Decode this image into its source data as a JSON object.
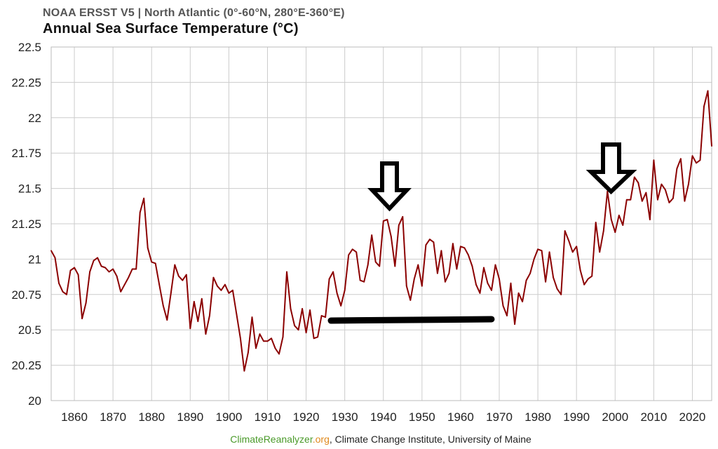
{
  "header": {
    "subtitle": "NOAA ERSST V5 | North Atlantic (0°-60°N, 280°E-360°E)",
    "title": "Annual Sea Surface Temperature (°C)"
  },
  "footer": {
    "site_name": "ClimateReanalyzer",
    "site_tld": ".org",
    "rest": ", Climate Change Institute, University of Maine"
  },
  "colors": {
    "line": "#8b0000",
    "grid": "#cccccc",
    "annotation": "#000000"
  },
  "chart_data": {
    "type": "line",
    "title": "Annual Sea Surface Temperature (°C)",
    "subtitle": "NOAA ERSST V5 | North Atlantic (0°-60°N, 280°E-360°E)",
    "xlabel": "",
    "ylabel": "",
    "xlim": [
      1854,
      2025
    ],
    "ylim": [
      20,
      22.5
    ],
    "x_ticks": [
      1860,
      1870,
      1880,
      1890,
      1900,
      1910,
      1920,
      1930,
      1940,
      1950,
      1960,
      1970,
      1980,
      1990,
      2000,
      2010,
      2020
    ],
    "y_ticks": [
      {
        "value": 20,
        "label": "20"
      },
      {
        "value": 20.25,
        "label": "20.25"
      },
      {
        "value": 20.5,
        "label": "20.5"
      },
      {
        "value": 20.75,
        "label": "20.75"
      },
      {
        "value": 21,
        "label": "21"
      },
      {
        "value": 21.25,
        "label": "21.25"
      },
      {
        "value": 21.5,
        "label": "21.5"
      },
      {
        "value": 21.75,
        "label": "21.75"
      },
      {
        "value": 22,
        "label": "22"
      },
      {
        "value": 22.25,
        "label": "22.25"
      },
      {
        "value": 22.5,
        "label": "22.5"
      }
    ],
    "grid": true,
    "legend": "none",
    "x_start": 1854,
    "series": [
      {
        "values": [
          21.06,
          21.01,
          20.83,
          20.77,
          20.75,
          20.92,
          20.94,
          20.89,
          20.58,
          20.69,
          20.91,
          20.99,
          21.01,
          20.95,
          20.94,
          20.91,
          20.93,
          20.88,
          20.77,
          20.82,
          20.87,
          20.93,
          20.93,
          21.33,
          21.43,
          21.08,
          20.98,
          20.97,
          20.82,
          20.67,
          20.57,
          20.76,
          20.96,
          20.88,
          20.85,
          20.89,
          20.51,
          20.7,
          20.56,
          20.72,
          20.47,
          20.6,
          20.87,
          20.81,
          20.78,
          20.82,
          20.76,
          20.78,
          20.61,
          20.44,
          20.21,
          20.34,
          20.59,
          20.37,
          20.47,
          20.42,
          20.42,
          20.44,
          20.37,
          20.33,
          20.45,
          20.91,
          20.65,
          20.53,
          20.5,
          20.65,
          20.48,
          20.64,
          20.44,
          20.45,
          20.6,
          20.59,
          20.86,
          20.91,
          20.76,
          20.67,
          20.78,
          21.03,
          21.07,
          21.05,
          20.85,
          20.84,
          20.96,
          21.17,
          20.98,
          20.95,
          21.27,
          21.28,
          21.16,
          20.95,
          21.24,
          21.3,
          20.81,
          20.71,
          20.86,
          20.96,
          20.81,
          21.1,
          21.14,
          21.12,
          20.9,
          21.06,
          20.84,
          20.9,
          21.11,
          20.93,
          21.09,
          21.08,
          21.03,
          20.95,
          20.82,
          20.76,
          20.94,
          20.83,
          20.78,
          20.96,
          20.86,
          20.67,
          20.6,
          20.83,
          20.54,
          20.76,
          20.7,
          20.85,
          20.9,
          21.0,
          21.07,
          21.06,
          20.84,
          21.05,
          20.87,
          20.79,
          20.75,
          21.2,
          21.13,
          21.05,
          21.09,
          20.92,
          20.82,
          20.86,
          20.88,
          21.26,
          21.05,
          21.2,
          21.48,
          21.28,
          21.19,
          21.31,
          21.24,
          21.42,
          21.42,
          21.58,
          21.54,
          21.41,
          21.47,
          21.28,
          21.7,
          21.42,
          21.53,
          21.49,
          21.4,
          21.43,
          21.64,
          21.71,
          21.41,
          21.53,
          21.73,
          21.68,
          21.7,
          22.08,
          22.19,
          21.8
        ]
      }
    ]
  }
}
